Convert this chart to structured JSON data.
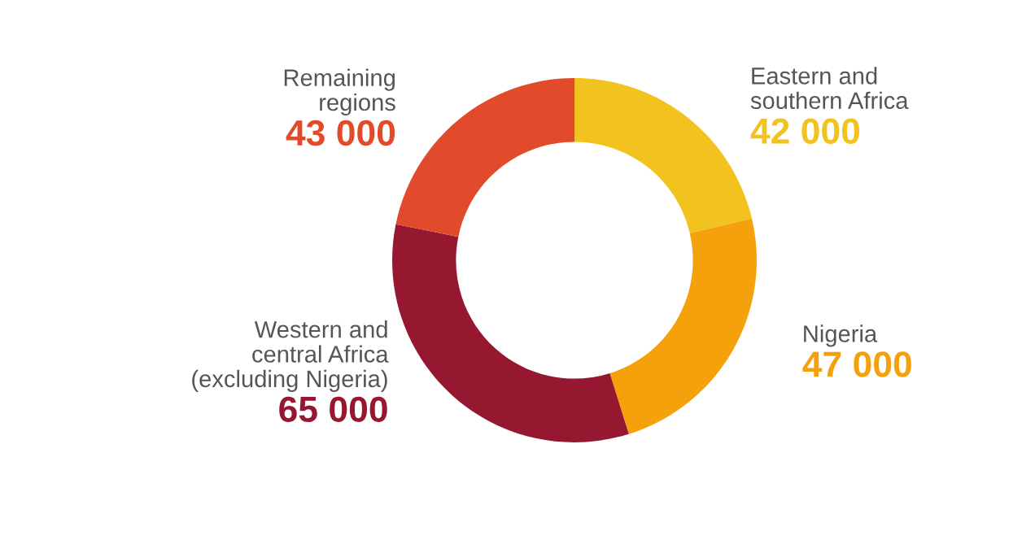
{
  "chart_data": {
    "type": "donut",
    "categories": [
      "Eastern and\nsouthern Africa",
      "Nigeria",
      "Western and\ncentral Africa\n(excluding Nigeria)",
      "Remaining\nregions"
    ],
    "values": [
      42000,
      47000,
      65000,
      43000
    ],
    "value_labels": [
      "42 000",
      "47 000",
      "65 000",
      "43 000"
    ],
    "colors": [
      "#f2c31f",
      "#f4a10c",
      "#951830",
      "#e24a2c"
    ],
    "legend": false
  }
}
